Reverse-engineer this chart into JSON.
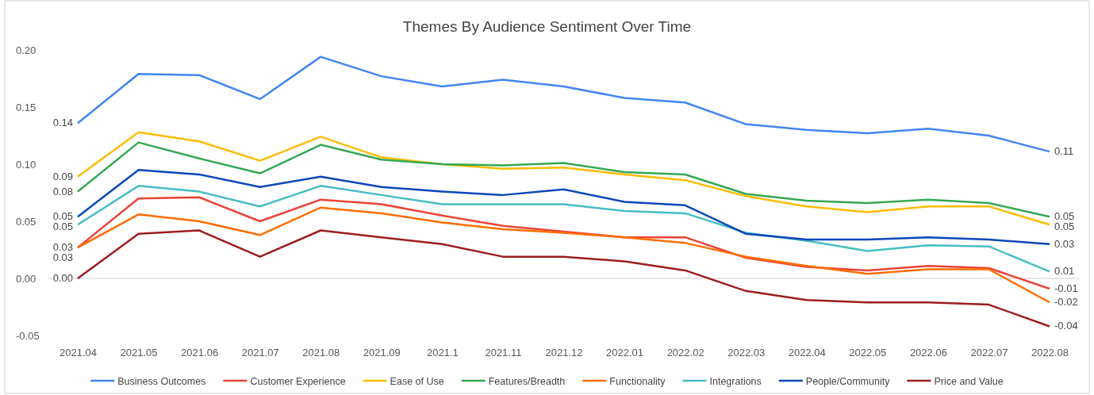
{
  "chart_data": {
    "type": "line",
    "title": "Themes By Audience Sentiment Over Time",
    "categories": [
      "2021.04",
      "2021.05",
      "2021.06",
      "2021.07",
      "2021.08",
      "2021.09",
      "2021.1",
      "2021.11",
      "2021.12",
      "2022.01",
      "2022.02",
      "2022.03",
      "2022.04",
      "2022.05",
      "2022.06",
      "2022.07",
      "2022.08"
    ],
    "ylim": [
      -0.05,
      0.2
    ],
    "yticks": [
      {
        "value": -0.05,
        "label": "-0.05"
      },
      {
        "value": 0,
        "label": "0.00"
      },
      {
        "value": 0.05,
        "label": "0.05"
      },
      {
        "value": 0.1,
        "label": "0.10"
      },
      {
        "value": 0.15,
        "label": "0.15"
      },
      {
        "value": 0.2,
        "label": "0.20"
      }
    ],
    "grid": false,
    "ref_lines": [
      {
        "axis": "y",
        "value": 0,
        "color": "#cccccc"
      }
    ],
    "legend": "bottom",
    "marker": "none",
    "line_style": "solid",
    "series": [
      {
        "name": "Business Outcomes",
        "color": "#4285f4",
        "values": [
          0.136,
          0.179,
          0.178,
          0.157,
          0.194,
          0.177,
          0.168,
          0.174,
          0.168,
          0.158,
          0.154,
          0.135,
          0.13,
          0.127,
          0.131,
          0.125,
          0.111
        ],
        "value_labels": [
          "0.14",
          null,
          null,
          null,
          null,
          null,
          null,
          null,
          null,
          null,
          null,
          null,
          null,
          null,
          null,
          null,
          "0.11"
        ]
      },
      {
        "name": "Customer Experience",
        "color": "#ea4335",
        "values": [
          0.027,
          0.07,
          0.071,
          0.05,
          0.069,
          0.065,
          0.055,
          0.046,
          0.041,
          0.036,
          0.036,
          0.018,
          0.01,
          0.007,
          0.011,
          0.009,
          -0.009
        ],
        "value_labels": [
          "0.03",
          null,
          null,
          null,
          null,
          null,
          null,
          null,
          null,
          null,
          null,
          null,
          null,
          null,
          null,
          null,
          "-0.01"
        ]
      },
      {
        "name": "Ease of Use",
        "color": "#fbbc04",
        "values": [
          0.089,
          0.128,
          0.12,
          0.103,
          0.124,
          0.106,
          0.1,
          0.096,
          0.097,
          0.091,
          0.086,
          0.072,
          0.063,
          0.058,
          0.063,
          0.063,
          0.047
        ],
        "value_labels": [
          "0.09",
          null,
          null,
          null,
          null,
          null,
          null,
          null,
          null,
          null,
          null,
          null,
          null,
          null,
          null,
          null,
          "0.05"
        ]
      },
      {
        "name": "Features/Breadth",
        "color": "#34a853",
        "values": [
          0.076,
          0.119,
          0.105,
          0.092,
          0.117,
          0.104,
          0.1,
          0.099,
          0.101,
          0.093,
          0.091,
          0.074,
          0.068,
          0.066,
          0.069,
          0.066,
          0.054
        ],
        "value_labels": [
          "0.08",
          null,
          null,
          null,
          null,
          null,
          null,
          null,
          null,
          null,
          null,
          null,
          null,
          null,
          null,
          null,
          "0.05"
        ]
      },
      {
        "name": "Functionality",
        "color": "#ff6d01",
        "values": [
          0.027,
          0.056,
          0.05,
          0.038,
          0.062,
          0.057,
          0.049,
          0.043,
          0.04,
          0.036,
          0.031,
          0.019,
          0.011,
          0.004,
          0.008,
          0.008,
          -0.021
        ],
        "value_labels": [
          "0.03",
          null,
          null,
          null,
          null,
          null,
          null,
          null,
          null,
          null,
          null,
          null,
          null,
          null,
          null,
          null,
          "-0.02"
        ]
      },
      {
        "name": "Integrations",
        "color": "#46bdc6",
        "values": [
          0.047,
          0.081,
          0.076,
          0.063,
          0.081,
          0.073,
          0.065,
          0.065,
          0.065,
          0.059,
          0.057,
          0.04,
          0.033,
          0.024,
          0.029,
          0.028,
          0.006
        ],
        "value_labels": [
          "0.05",
          null,
          null,
          null,
          null,
          null,
          null,
          null,
          null,
          null,
          null,
          null,
          null,
          null,
          null,
          null,
          "0.01"
        ]
      },
      {
        "name": "People/Community",
        "color": "#0b47b8",
        "values": [
          0.054,
          0.095,
          0.091,
          0.08,
          0.089,
          0.08,
          0.076,
          0.073,
          0.078,
          0.067,
          0.064,
          0.039,
          0.034,
          0.034,
          0.036,
          0.034,
          0.03
        ],
        "value_labels": [
          "0.05",
          null,
          null,
          null,
          null,
          null,
          null,
          null,
          null,
          null,
          null,
          null,
          null,
          null,
          null,
          null,
          "0.03"
        ]
      },
      {
        "name": "Price and Value",
        "color": "#9e1d1d",
        "values": [
          0,
          0.039,
          0.042,
          0.019,
          0.042,
          0.036,
          0.03,
          0.019,
          0.019,
          0.015,
          0.007,
          -0.011,
          -0.019,
          -0.021,
          -0.021,
          -0.023,
          -0.042
        ],
        "value_labels": [
          "0.00",
          null,
          null,
          null,
          null,
          null,
          null,
          null,
          null,
          null,
          null,
          null,
          null,
          null,
          null,
          null,
          "-0.04"
        ]
      }
    ]
  }
}
